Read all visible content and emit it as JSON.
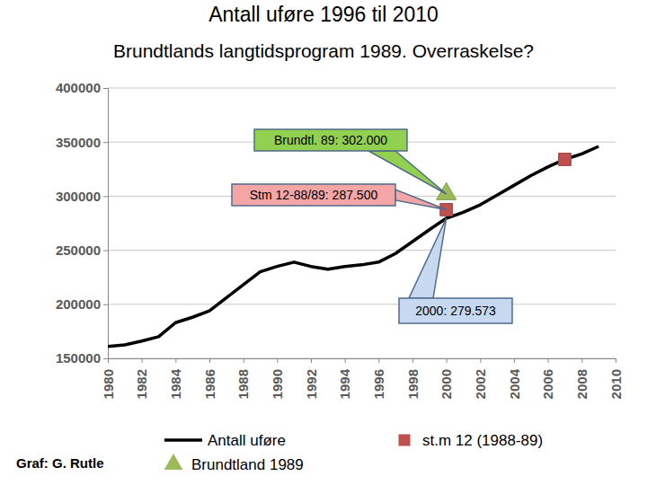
{
  "chart_data": {
    "type": "line",
    "title": "Antall uføre 1996 til 2010",
    "subtitle": "Brundtlands langtidsprogram 1989. Overraskelse?",
    "source": "Graf: G. Rutle",
    "xlim": [
      1980,
      2010
    ],
    "xticks": [
      1980,
      1982,
      1984,
      1986,
      1988,
      1990,
      1992,
      1994,
      1996,
      1998,
      2000,
      2002,
      2004,
      2006,
      2008,
      2010
    ],
    "ylim": [
      150000,
      400000
    ],
    "yticks": [
      150000,
      200000,
      250000,
      300000,
      350000,
      400000
    ],
    "grid": true,
    "legend": "bottom",
    "series": [
      {
        "name": "Antall uføre",
        "type": "line",
        "color": "#000000",
        "x": [
          1980,
          1981,
          1982,
          1983,
          1984,
          1985,
          1986,
          1987,
          1988,
          1989,
          1990,
          1991,
          1992,
          1993,
          1994,
          1995,
          1996,
          1997,
          1998,
          1999,
          2000,
          2001,
          2002,
          2003,
          2004,
          2005,
          2006,
          2007,
          2008,
          2009
        ],
        "values": [
          161000,
          162500,
          166000,
          170000,
          183000,
          188000,
          194000,
          206000,
          218000,
          230000,
          235000,
          239000,
          235000,
          232500,
          235000,
          236500,
          239000,
          247000,
          258000,
          269000,
          279573,
          285000,
          292000,
          301000,
          310000,
          319000,
          327000,
          334000,
          339000,
          346000
        ]
      },
      {
        "name": "st.m 12 (1988-89)",
        "type": "scatter",
        "marker": "square",
        "color": "#c0504d",
        "x": [
          2000,
          2007
        ],
        "values": [
          287500,
          334000
        ]
      },
      {
        "name": "Brundtland 1989",
        "type": "scatter",
        "marker": "triangle",
        "color": "#9bbb59",
        "x": [
          2000
        ],
        "values": [
          302000
        ]
      }
    ],
    "annotations": [
      {
        "text": "Brundtl. 89: 302.000",
        "color": "#92d050"
      },
      {
        "text": "Stm 12-88/89: 287.500",
        "color": "#f4a6a6"
      },
      {
        "text": "2000: 279.573",
        "color": "#c6d9f1"
      }
    ]
  }
}
